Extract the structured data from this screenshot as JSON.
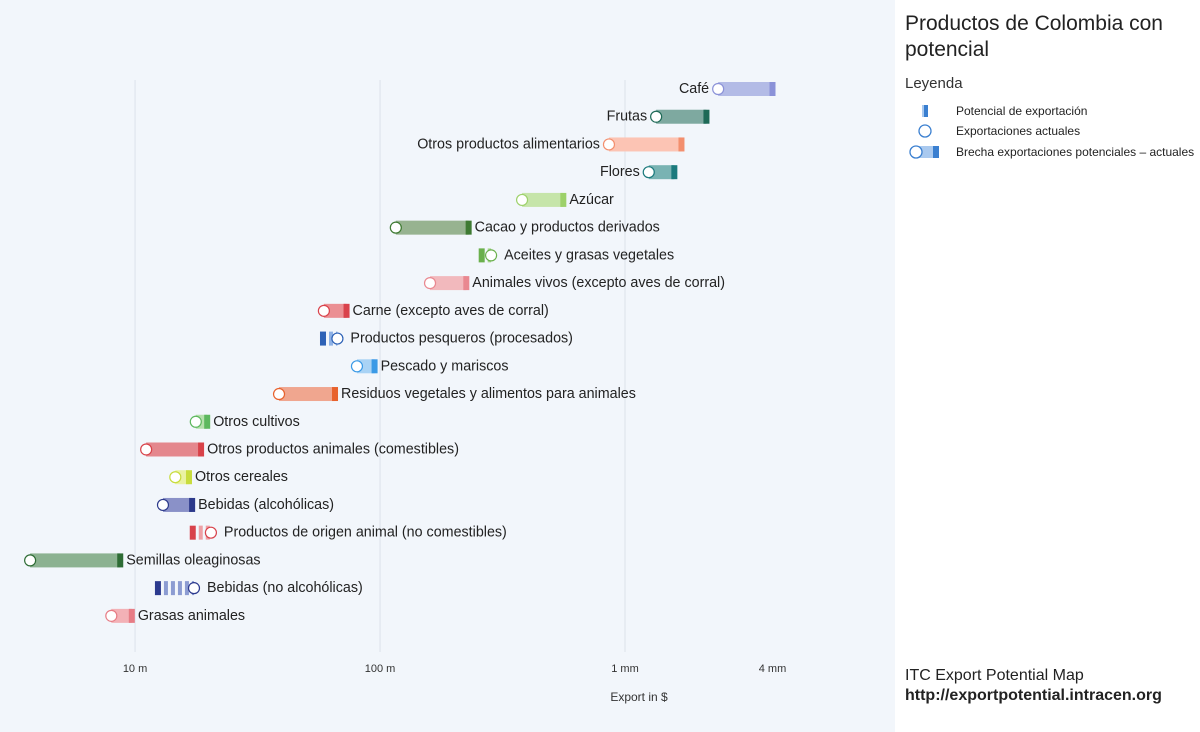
{
  "chart_data": {
    "type": "bar",
    "title": "Productos de Colombia con potencial",
    "xlabel": "Export in $",
    "xscale": "log",
    "xlim": [
      2810000,
      12650000000
    ],
    "grid": true,
    "xticks": [
      {
        "value": 10000000,
        "label": "10 m"
      },
      {
        "value": 100000000,
        "label": "100 m"
      },
      {
        "value": 1000000000,
        "label": "1 mm"
      },
      {
        "value": 4000000000,
        "label": "4 mm"
      }
    ],
    "legend": {
      "title": "Leyenda",
      "placement": "right",
      "color_dark": "#3a7fd0",
      "color_light": "#a9c9ef",
      "items": [
        {
          "label": "Potencial de exportación",
          "icon": "potential-bar-icon"
        },
        {
          "label": "Exportaciones actuales",
          "icon": "current-circle-icon"
        },
        {
          "label": "Brecha exportaciones potenciales – actuales",
          "icon": "gap-range-icon"
        }
      ]
    },
    "rows": [
      {
        "name": "Café",
        "current": 2400000000,
        "potential": 4000000000,
        "color_light": "#b3bbe6",
        "color_dark": "#8b92d8"
      },
      {
        "name": "Frutas",
        "current": 1340000000,
        "potential": 2150000000,
        "color_light": "#7ea9a0",
        "color_dark": "#1e6a57"
      },
      {
        "name": "Otros productos alimentarios",
        "current": 860000000,
        "potential": 1700000000,
        "color_light": "#fcc4b4",
        "color_dark": "#f38f6e"
      },
      {
        "name": "Flores",
        "current": 1250000000,
        "potential": 1590000000,
        "color_light": "#79b3b3",
        "color_dark": "#1b7a7d"
      },
      {
        "name": "Azúcar",
        "current": 380000000,
        "potential": 560000000,
        "color_light": "#c6e5a9",
        "color_dark": "#9dd16a"
      },
      {
        "name": "Cacao y productos derivados",
        "current": 116000000,
        "potential": 230000000,
        "color_light": "#97b390",
        "color_dark": "#3e7a32"
      },
      {
        "name": "Aceites y grasas vegetales",
        "current": 284000000,
        "potential": 260000000,
        "color_light": "#a8d88e",
        "color_dark": "#6ab04c"
      },
      {
        "name": "Animales vivos (excepto aves de corral)",
        "current": 160000000,
        "potential": 225000000,
        "color_light": "#f2b9bd",
        "color_dark": "#e98890"
      },
      {
        "name": "Carne (excepto aves de corral)",
        "current": 59000000,
        "potential": 73000000,
        "color_light": "#eb8f93",
        "color_dark": "#d9424b"
      },
      {
        "name": "Productos pesqueros (procesados)",
        "current": 67000000,
        "potential": 58500000,
        "color_light": "#8fb2e6",
        "color_dark": "#2e62b6"
      },
      {
        "name": "Pescado y mariscos",
        "current": 80500000,
        "potential": 95000000,
        "color_light": "#a9d3f5",
        "color_dark": "#3b9ae6"
      },
      {
        "name": "Residuos vegetales y alimentos para animales",
        "current": 38700000,
        "potential": 65500000,
        "color_light": "#f0a68f",
        "color_dark": "#e8622d"
      },
      {
        "name": "Otros cultivos",
        "current": 17700000,
        "potential": 19700000,
        "color_light": "#b6e0ac",
        "color_dark": "#5db85e"
      },
      {
        "name": "Otros productos animales (comestibles)",
        "current": 11100000,
        "potential": 18600000,
        "color_light": "#e4878d",
        "color_dark": "#d84249"
      },
      {
        "name": "Otros cereales",
        "current": 14600000,
        "potential": 16600000,
        "color_light": "#eaf2a3",
        "color_dark": "#c8dc3c"
      },
      {
        "name": "Bebidas (alcohólicas)",
        "current": 13000000,
        "potential": 17100000,
        "color_light": "#8a91c8",
        "color_dark": "#2c398b"
      },
      {
        "name": "Productos de origen animal (no comestibles)",
        "current": 20400000,
        "potential": 17200000,
        "color_light": "#eea0a5",
        "color_dark": "#d8424b"
      },
      {
        "name": "Semillas oleaginosas",
        "current": 3730000,
        "potential": 8700000,
        "color_light": "#8cb291",
        "color_dark": "#2e6c35"
      },
      {
        "name": "Bebidas (no alcohólicas)",
        "current": 17400000,
        "potential": 12400000,
        "color_light": "#8c9cd2",
        "color_dark": "#2c3a8e"
      },
      {
        "name": "Grasas animales",
        "current": 8000000,
        "potential": 9700000,
        "color_light": "#f3b1b6",
        "color_dark": "#e77c85"
      }
    ]
  },
  "footer": {
    "source_name": "ITC Export Potential Map",
    "url": "http://exportpotential.intracen.org"
  }
}
